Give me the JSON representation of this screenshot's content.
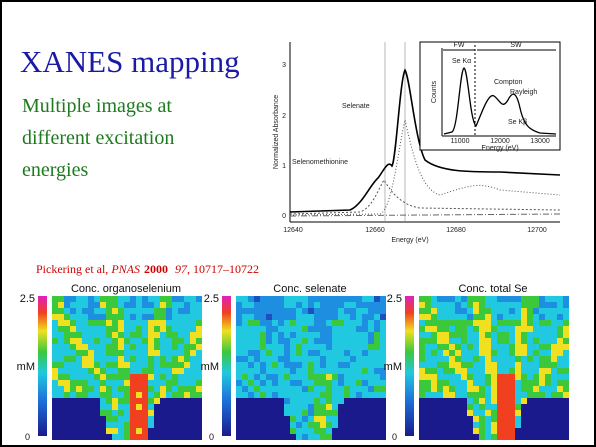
{
  "title": "XANES mapping",
  "subtitle_lines": [
    "Multiple images at",
    "different excitation",
    "energies"
  ],
  "spectrum": {
    "y_label": "Normalized Absorbance",
    "x_label": "Energy (eV)",
    "x_ticks": [
      "12640",
      "12660",
      "12680",
      "12700"
    ],
    "y_ticks": [
      "0",
      "1",
      "2",
      "3"
    ],
    "labels": [
      "Selenate",
      "Selenomethionine"
    ],
    "inset": {
      "y_label": "Counts",
      "x_label": "Energy (eV)",
      "x_ticks": [
        "11000",
        "12000",
        "13000"
      ],
      "regions": [
        "FW",
        "SW"
      ],
      "labels": [
        "Se Kα",
        "Compton",
        "Rayleigh",
        "Se Kβ"
      ]
    }
  },
  "citation": {
    "authors": "Pickering et al, ",
    "journal": "PNAS",
    "year": "2000",
    "volume": "97",
    "pages": ", 10717–10722"
  },
  "maps": [
    {
      "title": "Conc. organoselenium",
      "max": "2.5",
      "unit": "mM",
      "min": "0"
    },
    {
      "title": "Conc. selenate",
      "max": "2.5",
      "unit": "mM",
      "min": "0"
    },
    {
      "title": "Conc. total Se",
      "max": "2.5",
      "unit": "mM",
      "min": "0"
    }
  ]
}
